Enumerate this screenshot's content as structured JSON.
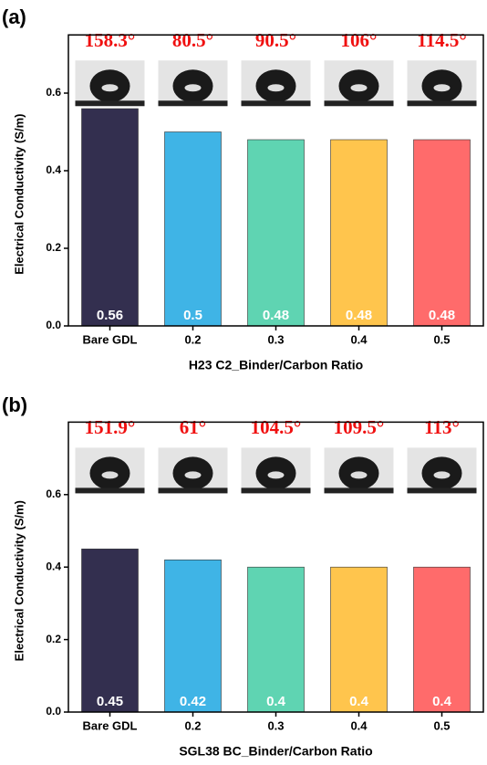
{
  "chart_data": [
    {
      "type": "bar",
      "panel_label": "(a)",
      "xlabel": "H23 C2_Binder/Carbon Ratio",
      "ylabel": "Electrical Conductivity (S/m)",
      "categories": [
        "Bare GDL",
        "0.2",
        "0.3",
        "0.4",
        "0.5"
      ],
      "values": [
        0.56,
        0.5,
        0.48,
        0.48,
        0.48
      ],
      "colors": [
        "#332f4f",
        "#3fb4e6",
        "#5fd4b2",
        "#ffc54d",
        "#ff6b6b"
      ],
      "annotations": [
        "158.3°",
        "80.5°",
        "90.5°",
        "106°",
        "114.5°"
      ],
      "ylim": [
        0,
        0.75
      ],
      "yticks": [
        {
          "value": 0,
          "label": "0.0"
        },
        0.2,
        0.4,
        0.6
      ]
    },
    {
      "type": "bar",
      "panel_label": "(b)",
      "xlabel": "SGL38 BC_Binder/Carbon Ratio",
      "ylabel": "Electrical Conductivity (S/m)",
      "categories": [
        "Bare GDL",
        "0.2",
        "0.3",
        "0.4",
        "0.5"
      ],
      "values": [
        0.45,
        0.42,
        0.4,
        0.4,
        0.4
      ],
      "colors": [
        "#332f4f",
        "#3fb4e6",
        "#5fd4b2",
        "#ffc54d",
        "#ff6b6b"
      ],
      "annotations": [
        "151.9°",
        "61°",
        "104.5°",
        "109.5°",
        "113°"
      ],
      "ylim": [
        0,
        0.8
      ],
      "yticks": [
        {
          "value": 0,
          "label": "0.0"
        },
        0.2,
        0.4,
        0.6
      ]
    }
  ]
}
